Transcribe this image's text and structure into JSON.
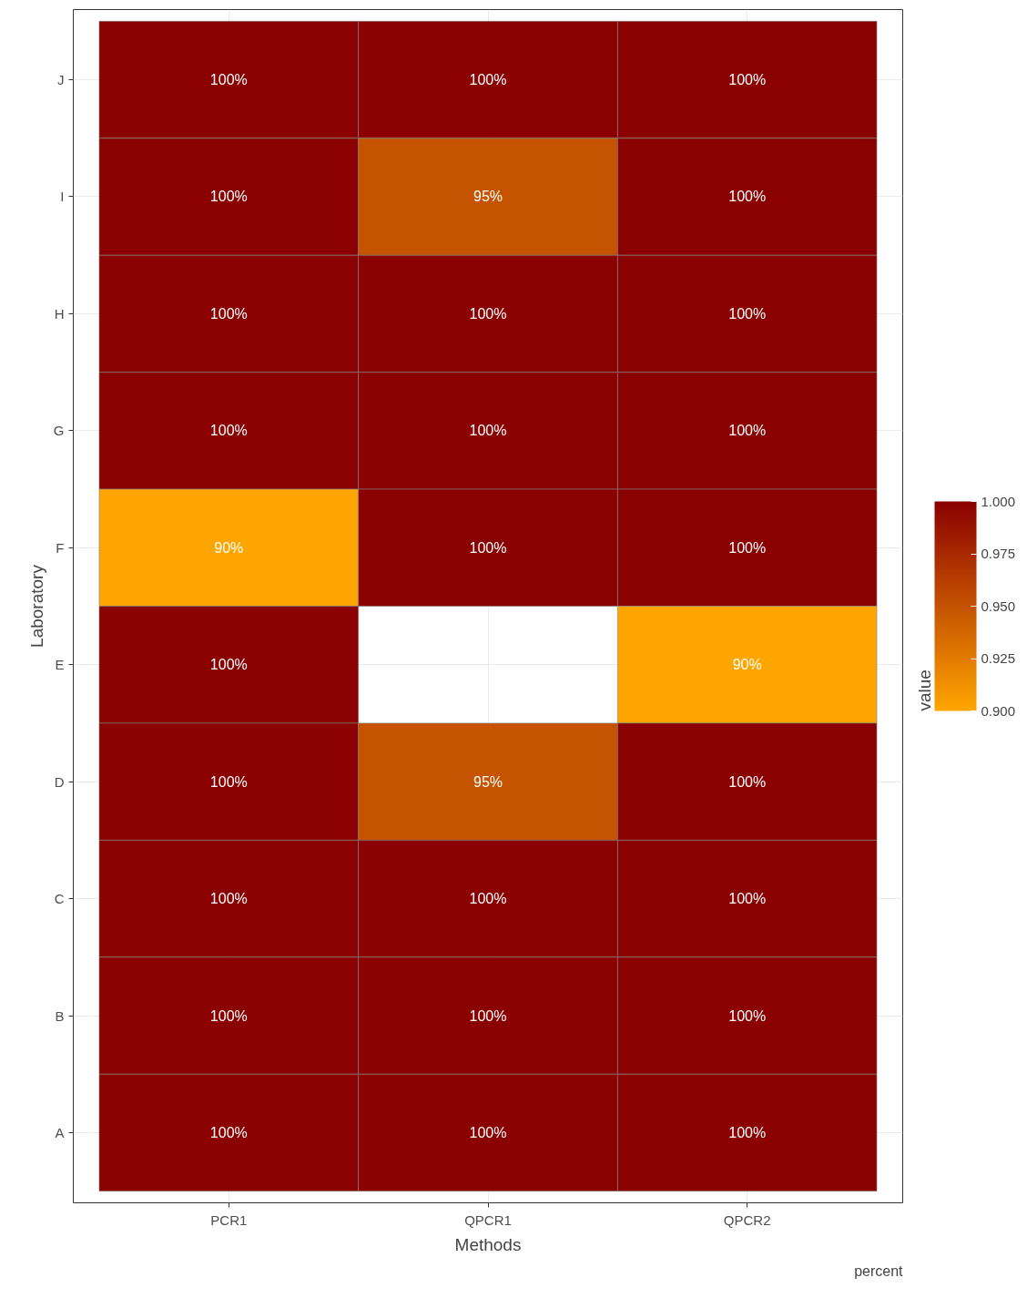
{
  "chart_data": {
    "type": "heatmap",
    "xlabel": "Methods",
    "ylabel": "Laboratory",
    "clabel": "value",
    "categories": [
      "PCR1",
      "QPCR1",
      "QPCR2"
    ],
    "y_categories": [
      "J",
      "I",
      "H",
      "G",
      "F",
      "E",
      "D",
      "C",
      "B",
      "A"
    ],
    "cells": [
      [
        1.0,
        1.0,
        1.0
      ],
      [
        1.0,
        0.95,
        1.0
      ],
      [
        1.0,
        1.0,
        1.0
      ],
      [
        1.0,
        1.0,
        1.0
      ],
      [
        0.9,
        1.0,
        1.0
      ],
      [
        1.0,
        null,
        0.9
      ],
      [
        1.0,
        0.95,
        1.0
      ],
      [
        1.0,
        1.0,
        1.0
      ],
      [
        1.0,
        1.0,
        1.0
      ],
      [
        1.0,
        1.0,
        1.0
      ]
    ],
    "cell_labels": [
      [
        "100%",
        "100%",
        "100%"
      ],
      [
        "100%",
        "95%",
        "100%"
      ],
      [
        "100%",
        "100%",
        "100%"
      ],
      [
        "100%",
        "100%",
        "100%"
      ],
      [
        "90%",
        "100%",
        "100%"
      ],
      [
        "100%",
        null,
        "90%"
      ],
      [
        "100%",
        "95%",
        "100%"
      ],
      [
        "100%",
        "100%",
        "100%"
      ],
      [
        "100%",
        "100%",
        "100%"
      ],
      [
        "100%",
        "100%",
        "100%"
      ]
    ],
    "colors": [
      "#ffa500",
      "#8b0000"
    ],
    "clim": [
      0.9,
      1.0
    ],
    "cticks": [
      {
        "value": 0.9,
        "label": "0.900"
      },
      {
        "value": 0.925,
        "label": "0.925"
      },
      {
        "value": 0.95,
        "label": "0.950"
      },
      {
        "value": 0.975,
        "label": "0.975"
      },
      {
        "value": 1.0,
        "label": "1.000"
      }
    ],
    "grid": true,
    "annotations": [
      "percent"
    ]
  }
}
